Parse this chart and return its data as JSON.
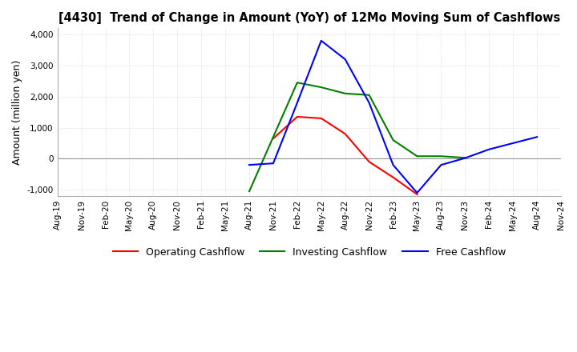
{
  "title": "[4430]  Trend of Change in Amount (YoY) of 12Mo Moving Sum of Cashflows",
  "ylabel": "Amount (million yen)",
  "ylim": [
    -1200,
    4200
  ],
  "yticks": [
    -1000,
    0,
    1000,
    2000,
    3000,
    4000
  ],
  "x_labels": [
    "Aug-19",
    "Nov-19",
    "Feb-20",
    "May-20",
    "Aug-20",
    "Nov-20",
    "Feb-21",
    "May-21",
    "Aug-21",
    "Nov-21",
    "Feb-22",
    "May-22",
    "Aug-22",
    "Nov-22",
    "Feb-23",
    "May-23",
    "Aug-23",
    "Nov-23",
    "Feb-24",
    "May-24",
    "Aug-24",
    "Nov-24"
  ],
  "operating": [
    null,
    null,
    null,
    null,
    null,
    null,
    null,
    null,
    null,
    650,
    1350,
    1300,
    800,
    -100,
    -600,
    -1150,
    null,
    null,
    null,
    null,
    null,
    null
  ],
  "investing": [
    null,
    null,
    null,
    null,
    null,
    null,
    null,
    null,
    -1050,
    700,
    2450,
    2300,
    2100,
    2050,
    600,
    80,
    80,
    30,
    null,
    null,
    null,
    null
  ],
  "free": [
    null,
    null,
    null,
    null,
    null,
    null,
    null,
    null,
    -200,
    -150,
    1800,
    3800,
    3200,
    1800,
    -200,
    -1100,
    -200,
    20,
    300,
    500,
    700,
    null
  ],
  "operating_color": "#ff0000",
  "investing_color": "#008000",
  "free_color": "#0000ff",
  "bg_color": "#ffffff",
  "grid_color": "#c8c8c8"
}
